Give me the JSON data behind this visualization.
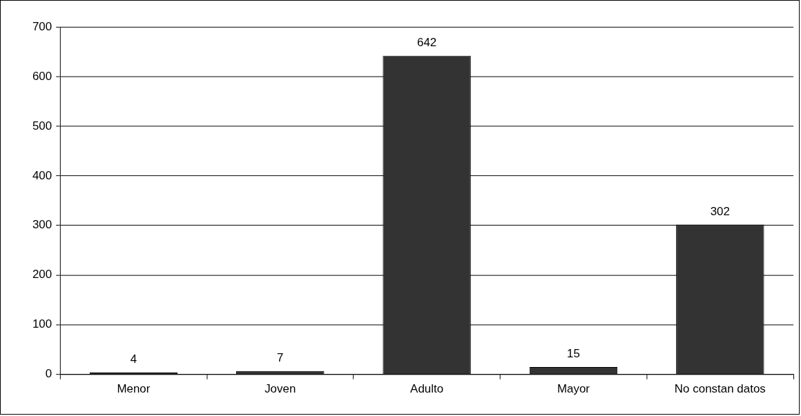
{
  "chart_data": {
    "type": "bar",
    "categories": [
      "Menor",
      "Joven",
      "Adulto",
      "Mayor",
      "No constan datos"
    ],
    "values": [
      4,
      7,
      642,
      15,
      302
    ],
    "color": "#333333",
    "ylim": [
      0,
      700
    ],
    "yticks": [
      0,
      100,
      200,
      300,
      400,
      500,
      600,
      700
    ],
    "grid": "y",
    "legend": false,
    "data_labels": true
  }
}
